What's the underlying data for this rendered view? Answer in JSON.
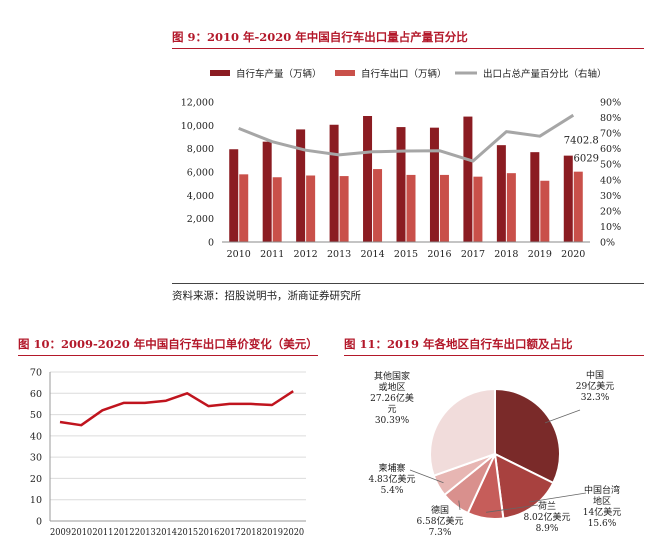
{
  "figures": [
    {
      "title": "图 9：2010 年-2020 年中国自行车出口量占产量百分比",
      "source": "资料来源：招股说明书，浙商证券研究所"
    },
    {
      "title": "图 10：2009-2020 年中国自行车出口单价变化（美元）"
    },
    {
      "title": "图 11：2019 年各地区自行车出口额及占比"
    }
  ],
  "colors": {
    "title_red": "#b3182a",
    "production": "#8b1c22",
    "export": "#c9504a",
    "ratio": "#a6a6a6",
    "price_line": "#c0141e"
  },
  "chart_data": [
    {
      "type": "bar",
      "categories": [
        "2010",
        "2011",
        "2012",
        "2013",
        "2014",
        "2015",
        "2016",
        "2017",
        "2018",
        "2019",
        "2020"
      ],
      "series": [
        {
          "name": "自行车产量（万辆）",
          "values": [
            7950,
            8600,
            9650,
            10050,
            10800,
            9850,
            9800,
            10750,
            8300,
            7700,
            7402.8
          ]
        },
        {
          "name": "自行车出口（万辆）",
          "values": [
            5800,
            5550,
            5700,
            5650,
            6250,
            5750,
            5750,
            5600,
            5900,
            5250,
            6029
          ]
        }
      ],
      "line_series": {
        "name": "出口占总产量百分比（右轴）",
        "values": [
          0.73,
          0.645,
          0.59,
          0.56,
          0.58,
          0.585,
          0.587,
          0.52,
          0.71,
          0.68,
          0.815
        ]
      },
      "ylim": [
        0,
        12000
      ],
      "yticks": [
        "0",
        "2,000",
        "4,000",
        "6,000",
        "8,000",
        "10,000",
        "12,000"
      ],
      "y2lim": [
        0,
        0.9
      ],
      "y2ticks": [
        "0%",
        "10%",
        "20%",
        "30%",
        "40%",
        "50%",
        "60%",
        "70%",
        "80%",
        "90%"
      ],
      "annotations": [
        "7402.8",
        "6029"
      ]
    },
    {
      "type": "line",
      "x": [
        "2009",
        "2010",
        "2011",
        "2012",
        "2013",
        "2014",
        "2015",
        "2016",
        "2017",
        "2018",
        "2019",
        "2020"
      ],
      "series": [
        {
          "values": [
            46.5,
            45,
            52,
            55.5,
            55.5,
            56.5,
            60,
            54,
            55,
            55,
            54.5,
            61
          ]
        }
      ],
      "ylim": [
        0,
        70
      ],
      "yticks": [
        "0",
        "10",
        "20",
        "30",
        "40",
        "50",
        "60",
        "70"
      ]
    },
    {
      "type": "pie",
      "slices": [
        {
          "value": 32.3,
          "label": [
            "中国",
            "29亿美元",
            "32.3%"
          ],
          "color": "#7a2a29"
        },
        {
          "value": 15.6,
          "label": [
            "中国台湾",
            "地区",
            "14亿美元",
            "15.6%"
          ],
          "color": "#a8413f"
        },
        {
          "value": 8.9,
          "label": [
            "荷兰",
            "8.02亿美元",
            "8.9%"
          ],
          "color": "#c65d5a"
        },
        {
          "value": 7.3,
          "label": [
            "德国",
            "6.58亿美元",
            "7.3%"
          ],
          "color": "#d9908d"
        },
        {
          "value": 5.4,
          "label": [
            "柬埔寨",
            "4.83亿美元",
            "5.4%"
          ],
          "color": "#e7b6b3"
        },
        {
          "value": 30.39,
          "label": [
            "其他国家",
            "或地区",
            "27.26亿美",
            "元",
            "30.39%"
          ],
          "color": "#f1dcdb"
        }
      ]
    }
  ]
}
